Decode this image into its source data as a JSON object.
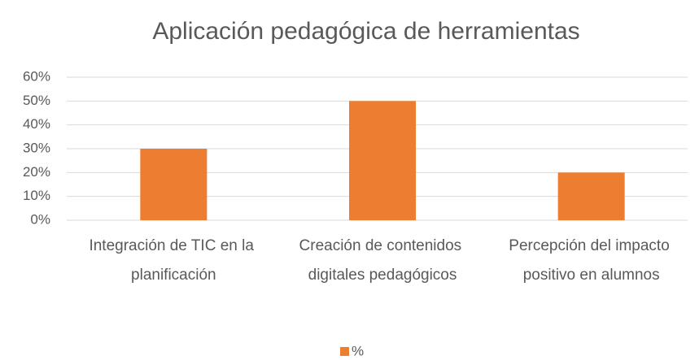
{
  "chart_data": {
    "type": "bar",
    "title": "Aplicación pedagógica de herramientas",
    "categories": [
      "Integración de TIC en la planificación",
      "Creación de contenidos digitales pedagógicos",
      "Percepción del impacto positivo en alumnos"
    ],
    "series": [
      {
        "name": "%",
        "color": "#ed7d31",
        "values": [
          30,
          50,
          20
        ]
      }
    ],
    "ylim": [
      0,
      60
    ],
    "yticks": [
      {
        "value": 0,
        "label": "0%"
      },
      {
        "value": 10,
        "label": "10%"
      },
      {
        "value": 20,
        "label": "20%"
      },
      {
        "value": 30,
        "label": "30%"
      },
      {
        "value": 40,
        "label": "40%"
      },
      {
        "value": 50,
        "label": "50%"
      },
      {
        "value": 60,
        "label": "60%"
      }
    ],
    "grid": true,
    "legend": "bottom"
  }
}
